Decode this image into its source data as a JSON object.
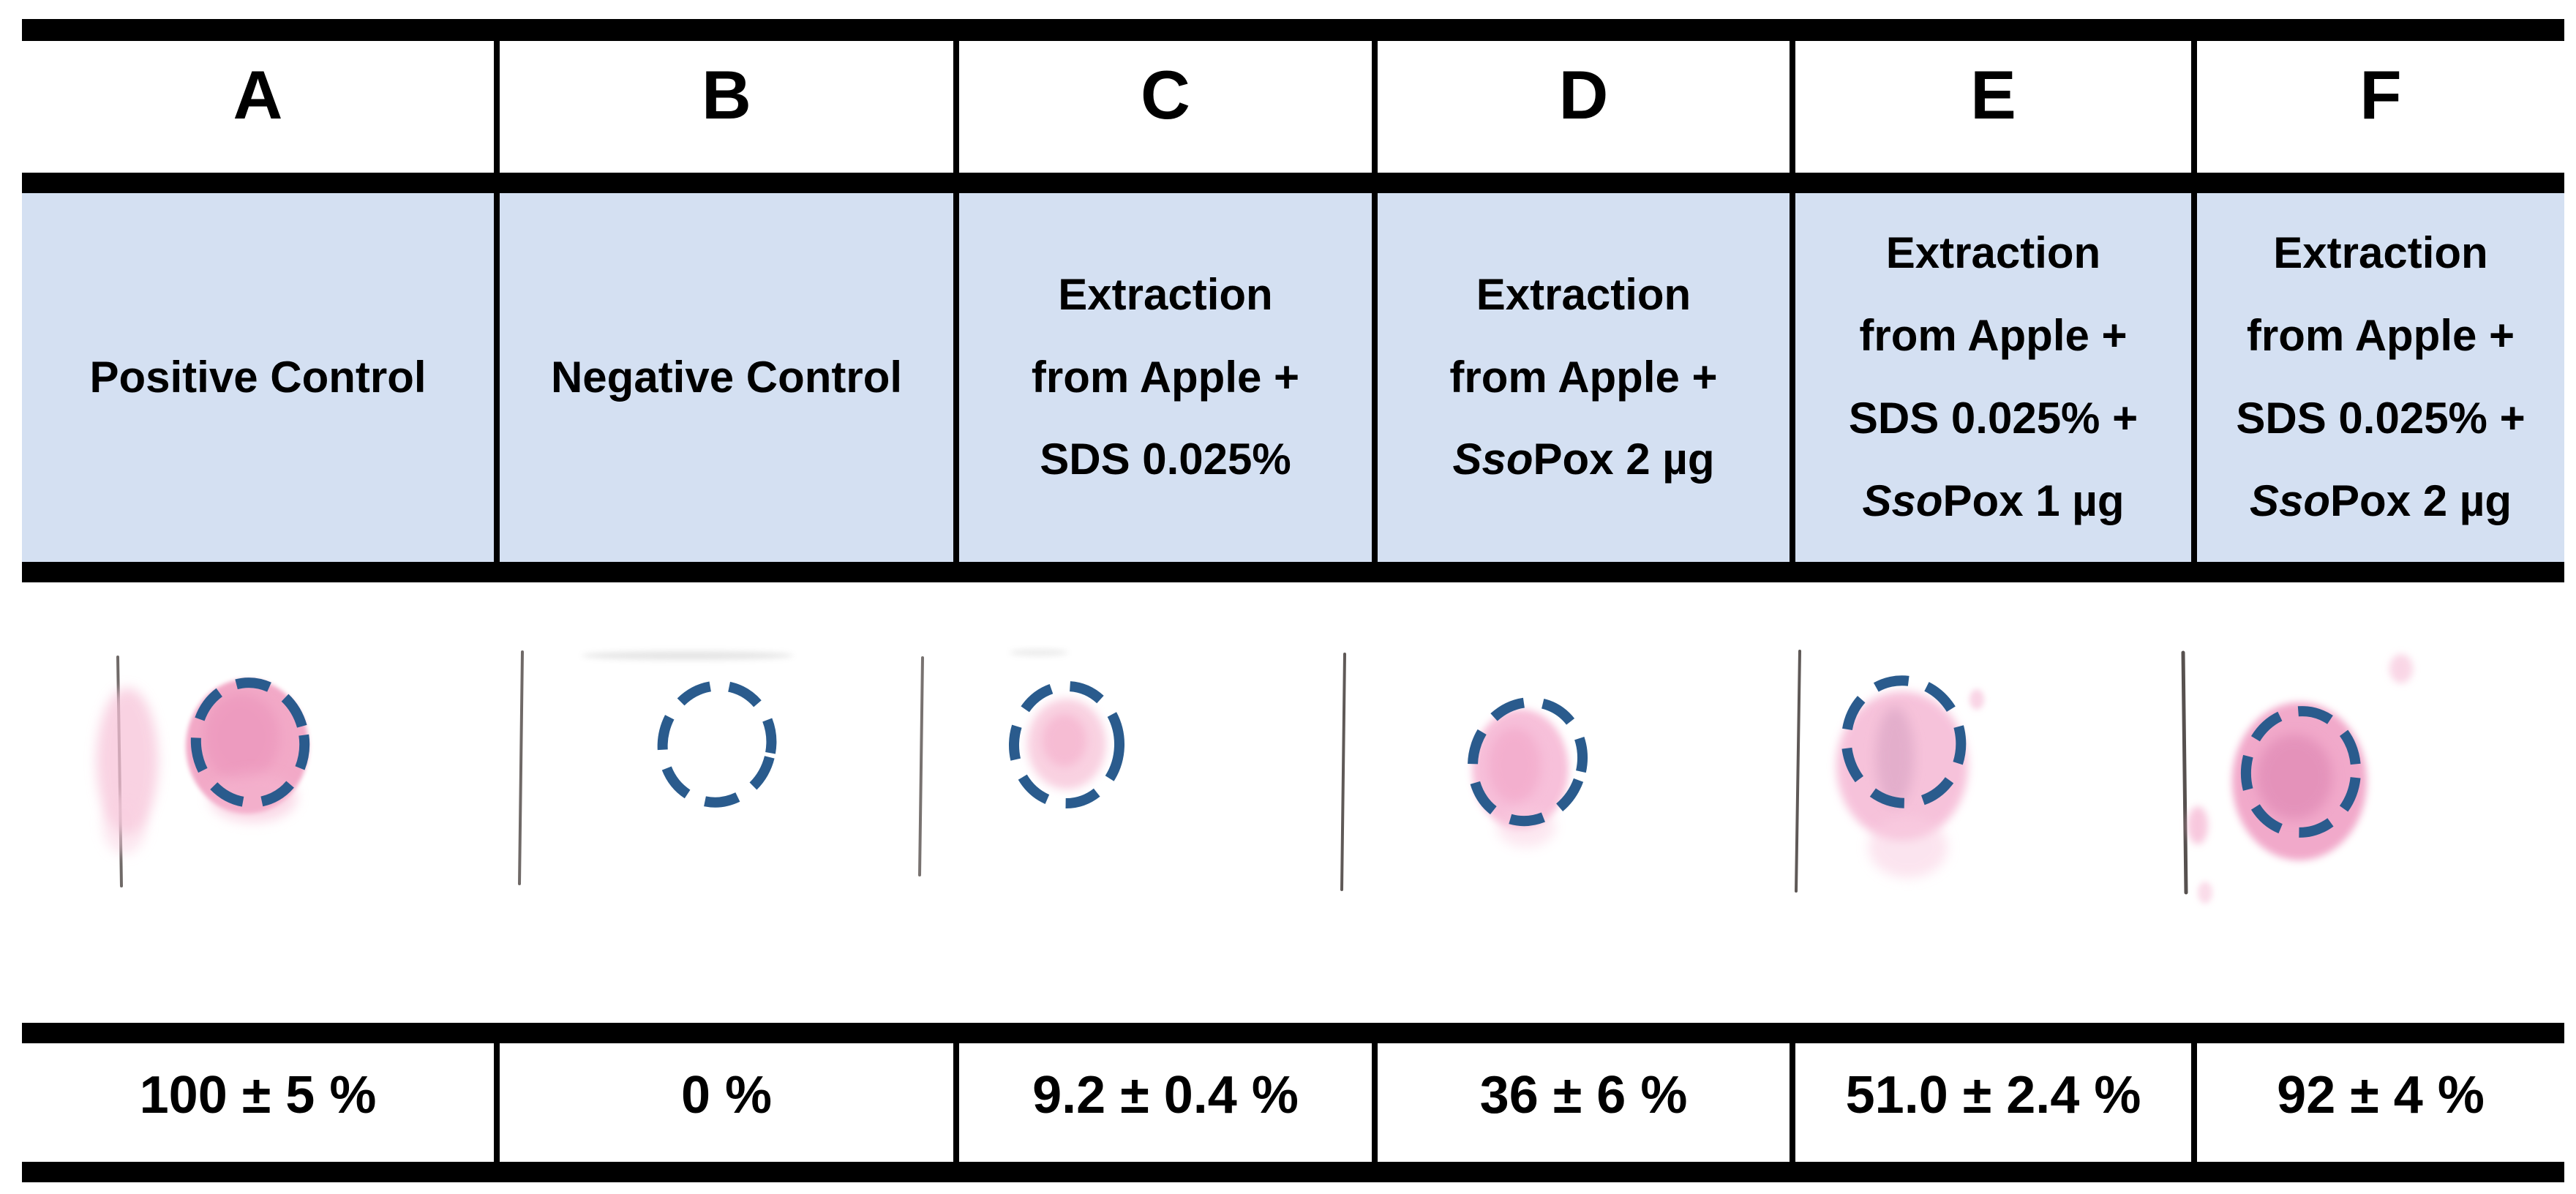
{
  "figure": {
    "colors": {
      "header-bg": "#d4e0f2",
      "circle-stroke": "#2a5b8d",
      "table-border": "#000000",
      "spot-pink": "#f2a5c5"
    },
    "columns": [
      {
        "letter": "A",
        "condition": [
          [
            {
              "t": "Positive Control",
              "i": false
            }
          ]
        ],
        "result": "100 ± 5 %",
        "spot": true
      },
      {
        "letter": "B",
        "condition": [
          [
            {
              "t": "Negative Control",
              "i": false
            }
          ]
        ],
        "result": "0 %",
        "spot": false
      },
      {
        "letter": "C",
        "condition": [
          [
            {
              "t": "Extraction",
              "i": false
            }
          ],
          [
            {
              "t": "from Apple +",
              "i": false
            }
          ],
          [
            {
              "t": "SDS 0.025%",
              "i": false
            }
          ]
        ],
        "result": "9.2 ± 0.4 %",
        "spot": true
      },
      {
        "letter": "D",
        "condition": [
          [
            {
              "t": "Extraction",
              "i": false
            }
          ],
          [
            {
              "t": "from Apple +",
              "i": false
            }
          ],
          [
            {
              "t": "Sso",
              "i": true
            },
            {
              "t": "Pox 2 µg",
              "i": false
            }
          ]
        ],
        "result": "36 ± 6 %",
        "spot": true
      },
      {
        "letter": "E",
        "condition": [
          [
            {
              "t": "Extraction",
              "i": false
            }
          ],
          [
            {
              "t": "from Apple +",
              "i": false
            }
          ],
          [
            {
              "t": "SDS 0.025% +",
              "i": false
            }
          ],
          [
            {
              "t": "Sso",
              "i": true
            },
            {
              "t": "Pox 1 µg",
              "i": false
            }
          ]
        ],
        "result": "51.0 ± 2.4 %",
        "spot": true
      },
      {
        "letter": "F",
        "condition": [
          [
            {
              "t": "Extraction",
              "i": false
            }
          ],
          [
            {
              "t": "from Apple +",
              "i": false
            }
          ],
          [
            {
              "t": "SDS 0.025% +",
              "i": false
            }
          ],
          [
            {
              "t": "Sso",
              "i": true
            },
            {
              "t": "Pox 2 µg",
              "i": false
            }
          ]
        ],
        "result": "92 ± 4 %",
        "spot": true
      }
    ]
  }
}
